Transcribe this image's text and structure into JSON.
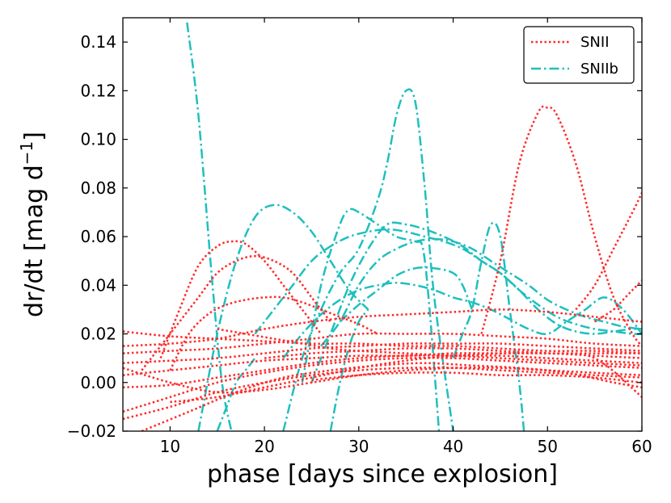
{
  "chart_data": {
    "type": "line",
    "title": "",
    "xlabel": "phase [days since explosion]",
    "ylabel": "dr/dt [mag d",
    "ylabel_sup": "−1",
    "ylabel_close": "]",
    "xlim": [
      5,
      60
    ],
    "ylim": [
      -0.02,
      0.15
    ],
    "x_ticks": [
      10,
      20,
      30,
      40,
      50,
      60
    ],
    "y_ticks": [
      -0.02,
      0.0,
      0.02,
      0.04,
      0.06,
      0.08,
      0.1,
      0.12,
      0.14
    ],
    "x_tick_labels": [
      "10",
      "20",
      "30",
      "40",
      "50",
      "60"
    ],
    "y_tick_labels": [
      "−0.02",
      "0.00",
      "0.02",
      "0.04",
      "0.06",
      "0.08",
      "0.10",
      "0.12",
      "0.14"
    ],
    "grid": false,
    "legend_position": "top-right",
    "colors": {
      "SNII": "#ff2a2a",
      "SNIIb": "#1fbfbf"
    },
    "legend": [
      {
        "label": "SNII",
        "color": "#ff2a2a",
        "dash": "dotted"
      },
      {
        "label": "SNIIb",
        "color": "#1fbfbf",
        "dash": "dashdot"
      }
    ],
    "series": [
      {
        "group": "SNIIb",
        "x": [
          11.8,
          13,
          14.5,
          15.5,
          16.5
        ],
        "y": [
          0.148,
          0.11,
          0.04,
          0.0,
          -0.02
        ]
      },
      {
        "group": "SNIIb",
        "x": [
          13,
          15,
          17,
          19,
          21,
          23,
          25,
          27,
          29,
          31
        ],
        "y": [
          -0.02,
          0.02,
          0.05,
          0.068,
          0.073,
          0.07,
          0.062,
          0.05,
          0.038,
          0.03
        ]
      },
      {
        "group": "SNIIb",
        "x": [
          22,
          24,
          26,
          28,
          30,
          32,
          33,
          34,
          35,
          36,
          37,
          38,
          40
        ],
        "y": [
          -0.02,
          0.01,
          0.03,
          0.045,
          0.055,
          0.075,
          0.09,
          0.11,
          0.12,
          0.115,
          0.08,
          0.035,
          -0.02
        ]
      },
      {
        "group": "SNIIb",
        "x": [
          24,
          26,
          28,
          29,
          30,
          32,
          34,
          36,
          36.8,
          37.5,
          38.5
        ],
        "y": [
          0.0,
          0.04,
          0.065,
          0.071,
          0.07,
          0.065,
          0.06,
          0.058,
          0.055,
          0.03,
          -0.02
        ]
      },
      {
        "group": "SNIIb",
        "x": [
          25,
          27,
          29,
          31,
          33,
          35,
          37,
          39,
          41,
          43,
          45,
          47,
          49,
          51,
          53,
          55,
          57,
          59,
          60
        ],
        "y": [
          0.0,
          0.02,
          0.04,
          0.055,
          0.065,
          0.065,
          0.063,
          0.06,
          0.056,
          0.05,
          0.045,
          0.038,
          0.032,
          0.027,
          0.024,
          0.022,
          0.021,
          0.02,
          0.02
        ]
      },
      {
        "group": "SNIIb",
        "x": [
          26,
          28,
          30,
          32,
          34,
          36,
          38,
          40,
          42,
          44,
          46,
          48,
          50,
          52,
          54,
          56,
          58,
          60
        ],
        "y": [
          0.015,
          0.025,
          0.04,
          0.05,
          0.055,
          0.058,
          0.059,
          0.058,
          0.055,
          0.05,
          0.045,
          0.04,
          0.034,
          0.03,
          0.027,
          0.025,
          0.023,
          0.022
        ]
      },
      {
        "group": "SNIIb",
        "x": [
          28,
          30,
          32,
          34,
          36,
          38,
          40,
          41,
          42
        ],
        "y": [
          0.025,
          0.032,
          0.038,
          0.044,
          0.047,
          0.047,
          0.045,
          0.04,
          0.03
        ]
      },
      {
        "group": "SNIIb",
        "x": [
          19,
          21,
          23,
          25,
          27,
          29,
          31,
          33,
          35,
          37,
          39,
          41,
          43,
          45,
          47,
          49,
          51,
          53,
          55,
          57,
          59,
          60
        ],
        "y": [
          0.02,
          0.03,
          0.04,
          0.05,
          0.056,
          0.06,
          0.062,
          0.063,
          0.062,
          0.06,
          0.058,
          0.055,
          0.05,
          0.045,
          0.038,
          0.03,
          0.024,
          0.021,
          0.02,
          0.021,
          0.022,
          0.022
        ]
      },
      {
        "group": "SNIIb",
        "x": [
          22,
          24,
          26,
          28,
          30,
          32,
          34,
          36,
          38,
          40,
          42,
          44,
          46,
          48,
          50,
          52,
          54,
          56,
          58,
          60
        ],
        "y": [
          0.01,
          0.02,
          0.028,
          0.034,
          0.038,
          0.04,
          0.041,
          0.04,
          0.038,
          0.035,
          0.033,
          0.03,
          0.026,
          0.022,
          0.02,
          0.025,
          0.03,
          0.035,
          0.03,
          0.02
        ]
      },
      {
        "group": "SNIIb",
        "x": [
          40,
          41,
          42,
          43,
          44,
          45,
          46,
          47,
          47.5
        ],
        "y": [
          0.01,
          0.02,
          0.03,
          0.05,
          0.065,
          0.06,
          0.03,
          0.0,
          -0.02
        ]
      },
      {
        "group": "SNIIb",
        "x": [
          15,
          16,
          17,
          18,
          19
        ],
        "y": [
          -0.02,
          -0.01,
          0.0,
          0.005,
          0.01
        ]
      },
      {
        "group": "SNIIb",
        "x": [
          27,
          28,
          29,
          30,
          31
        ],
        "y": [
          -0.02,
          0.0,
          0.015,
          0.025,
          0.03
        ]
      },
      {
        "group": "SNII",
        "x": [
          43,
          45,
          47,
          49,
          50,
          51,
          53,
          55,
          57,
          59,
          60
        ],
        "y": [
          0.02,
          0.05,
          0.09,
          0.111,
          0.113,
          0.11,
          0.09,
          0.06,
          0.035,
          0.02,
          0.015
        ]
      },
      {
        "group": "SNII",
        "x": [
          53,
          55,
          57,
          59,
          60
        ],
        "y": [
          0.03,
          0.04,
          0.055,
          0.07,
          0.078
        ]
      },
      {
        "group": "SNII",
        "x": [
          55,
          57,
          58,
          59,
          60
        ],
        "y": [
          0.025,
          0.03,
          0.034,
          0.038,
          0.042
        ]
      },
      {
        "group": "SNII",
        "x": [
          9,
          11,
          13,
          15,
          16.5,
          18,
          20,
          22,
          24,
          26
        ],
        "y": [
          0.01,
          0.03,
          0.048,
          0.056,
          0.058,
          0.057,
          0.05,
          0.04,
          0.03,
          0.02
        ]
      },
      {
        "group": "SNII",
        "x": [
          7,
          9,
          11,
          13,
          15,
          17,
          19,
          21,
          23,
          25,
          27
        ],
        "y": [
          0.005,
          0.015,
          0.025,
          0.035,
          0.045,
          0.05,
          0.052,
          0.05,
          0.045,
          0.035,
          0.025
        ]
      },
      {
        "group": "SNII",
        "x": [
          10,
          12,
          14,
          16,
          18,
          20,
          22,
          24,
          26,
          28,
          30,
          32
        ],
        "y": [
          0.005,
          0.02,
          0.028,
          0.032,
          0.034,
          0.035,
          0.035,
          0.033,
          0.03,
          0.027,
          0.024,
          0.02
        ]
      },
      {
        "group": "SNII",
        "x": [
          5,
          10,
          15,
          20,
          25,
          30,
          35,
          40,
          45,
          50,
          55,
          60
        ],
        "y": [
          0.021,
          0.019,
          0.018,
          0.017,
          0.016,
          0.016,
          0.015,
          0.015,
          0.014,
          0.013,
          0.013,
          0.012
        ]
      },
      {
        "group": "SNII",
        "x": [
          5,
          10,
          15,
          20,
          25,
          30,
          35,
          40,
          45,
          50,
          55,
          60
        ],
        "y": [
          0.015,
          0.016,
          0.018,
          0.022,
          0.025,
          0.027,
          0.028,
          0.029,
          0.03,
          0.029,
          0.027,
          0.025
        ]
      },
      {
        "group": "SNII",
        "x": [
          5,
          10,
          15,
          20,
          25,
          30,
          35,
          40,
          45,
          50,
          55,
          60
        ],
        "y": [
          0.008,
          0.009,
          0.01,
          0.012,
          0.014,
          0.015,
          0.016,
          0.016,
          0.016,
          0.015,
          0.014,
          0.013
        ]
      },
      {
        "group": "SNII",
        "x": [
          5,
          10,
          15,
          20,
          25,
          30,
          35,
          40,
          45,
          50,
          55,
          60
        ],
        "y": [
          0.003,
          0.005,
          0.007,
          0.009,
          0.01,
          0.011,
          0.011,
          0.012,
          0.012,
          0.012,
          0.012,
          0.012
        ]
      },
      {
        "group": "SNII",
        "x": [
          5,
          10,
          15,
          20,
          25,
          30,
          35,
          40,
          45,
          50,
          55,
          60
        ],
        "y": [
          -0.002,
          -0.001,
          0.002,
          0.005,
          0.008,
          0.01,
          0.011,
          0.011,
          0.011,
          0.01,
          0.009,
          0.008
        ]
      },
      {
        "group": "SNII",
        "x": [
          5,
          10,
          15,
          20,
          25,
          30,
          35,
          40,
          45,
          50,
          55,
          60
        ],
        "y": [
          -0.012,
          -0.006,
          0.0,
          0.004,
          0.007,
          0.009,
          0.01,
          0.01,
          0.009,
          0.008,
          0.007,
          0.006
        ]
      },
      {
        "group": "SNII",
        "x": [
          5,
          10,
          15,
          20,
          25,
          30,
          35,
          40,
          45,
          50,
          55,
          60
        ],
        "y": [
          -0.015,
          -0.01,
          -0.004,
          0.0,
          0.003,
          0.005,
          0.006,
          0.006,
          0.005,
          0.004,
          0.003,
          0.002
        ]
      },
      {
        "group": "SNII",
        "x": [
          7,
          12,
          17,
          22,
          27,
          32,
          37,
          42,
          47,
          52,
          57,
          60
        ],
        "y": [
          -0.02,
          -0.012,
          -0.004,
          0.002,
          0.005,
          0.007,
          0.008,
          0.007,
          0.006,
          0.004,
          0.0,
          -0.002
        ]
      },
      {
        "group": "SNII",
        "x": [
          5,
          10,
          15,
          20,
          25,
          30,
          35,
          40,
          45,
          50,
          55,
          60
        ],
        "y": [
          0.012,
          0.013,
          0.014,
          0.016,
          0.018,
          0.02,
          0.02,
          0.02,
          0.019,
          0.018,
          0.016,
          0.015
        ]
      },
      {
        "group": "SNII",
        "x": [
          5,
          10,
          15,
          20,
          25,
          30,
          35,
          40,
          45,
          50,
          55,
          60
        ],
        "y": [
          0.006,
          0.0,
          -0.004,
          -0.003,
          0.0,
          0.003,
          0.005,
          0.006,
          0.006,
          0.005,
          0.004,
          0.003
        ]
      },
      {
        "group": "SNII",
        "x": [
          15,
          18,
          21,
          24,
          27,
          30,
          35,
          40,
          45,
          50,
          55,
          60
        ],
        "y": [
          0.022,
          0.02,
          0.018,
          0.016,
          0.014,
          0.013,
          0.012,
          0.011,
          0.01,
          0.009,
          0.008,
          0.007
        ]
      },
      {
        "group": "SNII",
        "x": [
          20,
          25,
          30,
          35,
          40,
          45,
          50,
          55,
          60
        ],
        "y": [
          0.01,
          0.012,
          0.013,
          0.014,
          0.014,
          0.013,
          0.012,
          0.01,
          -0.006
        ]
      },
      {
        "group": "SNII",
        "x": [
          25,
          30,
          35,
          40,
          45,
          50,
          55,
          60
        ],
        "y": [
          0.001,
          0.003,
          0.004,
          0.004,
          0.003,
          0.003,
          0.002,
          0.0
        ]
      },
      {
        "group": "SNII",
        "x": [
          10,
          15,
          20,
          25,
          30,
          35,
          40,
          45,
          50,
          55,
          60
        ],
        "y": [
          -0.008,
          -0.006,
          -0.002,
          0.002,
          0.006,
          0.009,
          0.011,
          0.012,
          0.012,
          0.011,
          0.01
        ]
      }
    ]
  }
}
